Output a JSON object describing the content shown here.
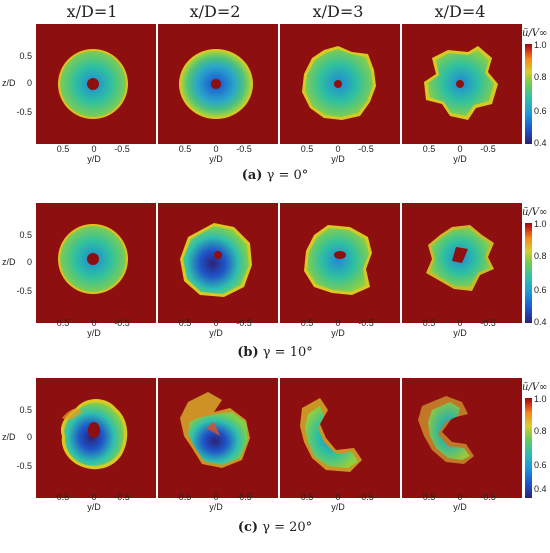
{
  "columns": [
    "x/D=1",
    "x/D=2",
    "x/D=3",
    "x/D=4"
  ],
  "axes": {
    "y_ticks": [
      "0.5",
      "0",
      "-0.5"
    ],
    "y_label": "z/D",
    "x_ticks": [
      "0.5",
      "0",
      "-0.5"
    ],
    "x_label": "y/D"
  },
  "colorbar": {
    "title": "ũ/V∞",
    "ticks": [
      "1.0",
      "0.8",
      "0.6",
      "0.4"
    ],
    "range": [
      0.4,
      1.0
    ]
  },
  "rows": [
    {
      "label": "(a)",
      "caption": "γ = 0°"
    },
    {
      "label": "(b)",
      "caption": "γ = 10°"
    },
    {
      "label": "(c)",
      "caption": "γ = 20°"
    }
  ],
  "colors": {
    "background": "#8e0f0f",
    "ring": "#6fd04a",
    "core": "#2b5fc9"
  }
}
